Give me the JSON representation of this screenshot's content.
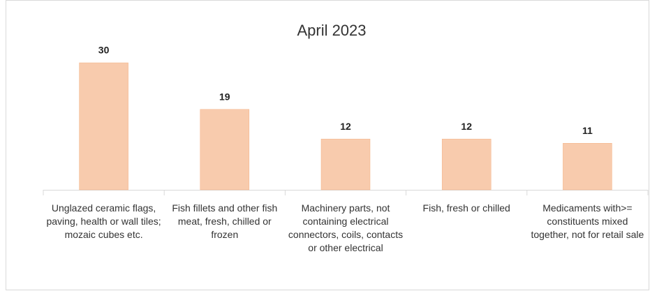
{
  "chart_data": {
    "type": "bar",
    "title": "April 2023",
    "categories": [
      "Unglazed ceramic flags, paving, health or wall tiles; mozaic cubes etc.",
      "Fish fillets and other fish meat, fresh, chilled or frozen",
      "Machinery parts, not containing electrical connectors, coils, contacts or other electrical",
      "Fish, fresh or chilled",
      "Medicaments with>= constituents mixed together, not for retail sale"
    ],
    "values": [
      30,
      19,
      12,
      12,
      11
    ],
    "color": "#f8cbad"
  }
}
